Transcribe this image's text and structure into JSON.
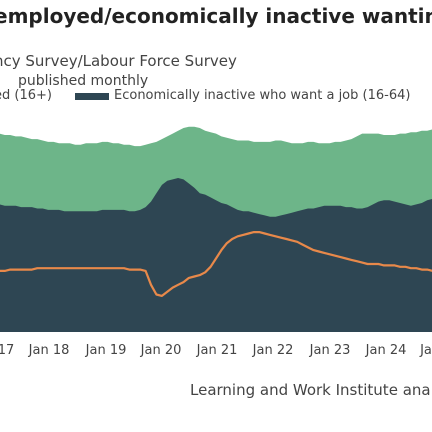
{
  "colors": {
    "economically_inactive_wanting": "#6db589",
    "unemployed": "#2e4653",
    "third_line": "#e8894a"
  },
  "chart_data": {
    "type": "area",
    "title": "employed/economically inactive wanting",
    "subtitle": "ncy Survey/Labour Force Survey",
    "note": "published monthly",
    "source": "Learning and Work Institute ana",
    "legend": [
      "ed (16+)",
      "Economically inactive who want a job (16-64)"
    ],
    "x_ticks": [
      "17",
      "Jan 18",
      "Jan 19",
      "Jan 20",
      "Jan 21",
      "Jan 22",
      "Jan 23",
      "Jan 24",
      "Ja"
    ],
    "x": [
      "2017-11",
      "2017-12",
      "2018-01",
      "2018-02",
      "2018-03",
      "2018-04",
      "2018-05",
      "2018-06",
      "2018-07",
      "2018-08",
      "2018-09",
      "2018-10",
      "2018-11",
      "2018-12",
      "2019-01",
      "2019-02",
      "2019-03",
      "2019-04",
      "2019-05",
      "2019-06",
      "2019-07",
      "2019-08",
      "2019-09",
      "2019-10",
      "2019-11",
      "2019-12",
      "2020-01",
      "2020-02",
      "2020-03",
      "2020-04",
      "2020-05",
      "2020-06",
      "2020-07",
      "2020-08",
      "2020-09",
      "2020-10",
      "2020-11",
      "2020-12",
      "2021-01",
      "2021-02",
      "2021-03",
      "2021-04",
      "2021-05",
      "2021-06",
      "2021-07",
      "2021-08",
      "2021-09",
      "2021-10",
      "2021-11",
      "2021-12",
      "2022-01",
      "2022-02",
      "2022-03",
      "2022-04",
      "2022-05",
      "2022-06",
      "2022-07",
      "2022-08",
      "2022-09",
      "2022-10",
      "2022-11",
      "2022-12",
      "2023-01",
      "2023-02",
      "2023-03",
      "2023-04",
      "2023-05",
      "2023-06",
      "2023-07",
      "2023-08",
      "2023-09",
      "2023-10",
      "2023-11",
      "2023-12",
      "2024-01",
      "2024-02",
      "2024-03",
      "2024-04",
      "2024-05",
      "2024-06",
      "2024-07",
      "2024-08",
      "2024-09"
    ],
    "series": [
      {
        "name": "ed (16+)",
        "values": [
          1.42,
          1.42,
          1.41,
          1.41,
          1.41,
          1.4,
          1.4,
          1.4,
          1.39,
          1.39,
          1.38,
          1.38,
          1.38,
          1.37,
          1.37,
          1.37,
          1.37,
          1.37,
          1.37,
          1.37,
          1.38,
          1.38,
          1.38,
          1.38,
          1.38,
          1.37,
          1.37,
          1.38,
          1.4,
          1.44,
          1.5,
          1.56,
          1.59,
          1.6,
          1.61,
          1.6,
          1.57,
          1.54,
          1.5,
          1.49,
          1.47,
          1.45,
          1.43,
          1.42,
          1.4,
          1.38,
          1.37,
          1.37,
          1.36,
          1.35,
          1.34,
          1.33,
          1.33,
          1.34,
          1.35,
          1.36,
          1.37,
          1.38,
          1.39,
          1.39,
          1.4,
          1.41,
          1.41,
          1.41,
          1.41,
          1.4,
          1.4,
          1.39,
          1.39,
          1.4,
          1.42,
          1.44,
          1.45,
          1.45,
          1.44,
          1.43,
          1.42,
          1.41,
          1.42,
          1.43,
          1.45,
          1.46,
          1.47
        ]
      },
      {
        "name": "Economically inactive who want a job (16-64)",
        "values": [
          1.95,
          1.93,
          1.92,
          1.92,
          1.91,
          1.91,
          1.9,
          1.89,
          1.89,
          1.88,
          1.87,
          1.87,
          1.86,
          1.86,
          1.86,
          1.85,
          1.85,
          1.86,
          1.86,
          1.86,
          1.87,
          1.87,
          1.86,
          1.86,
          1.85,
          1.85,
          1.84,
          1.84,
          1.85,
          1.86,
          1.87,
          1.89,
          1.91,
          1.93,
          1.95,
          1.97,
          1.98,
          1.98,
          1.97,
          1.95,
          1.94,
          1.93,
          1.91,
          1.9,
          1.89,
          1.88,
          1.88,
          1.88,
          1.87,
          1.87,
          1.87,
          1.87,
          1.88,
          1.88,
          1.87,
          1.86,
          1.86,
          1.86,
          1.87,
          1.87,
          1.86,
          1.86,
          1.86,
          1.87,
          1.87,
          1.88,
          1.89,
          1.91,
          1.93,
          1.93,
          1.93,
          1.93,
          1.92,
          1.92,
          1.92,
          1.93,
          1.93,
          1.94,
          1.94,
          1.95,
          1.95,
          1.96,
          1.96
        ]
      },
      {
        "name": "",
        "values": [
          0.94,
          0.94,
          0.94,
          0.95,
          0.95,
          0.95,
          0.95,
          0.95,
          0.96,
          0.96,
          0.96,
          0.96,
          0.96,
          0.96,
          0.96,
          0.96,
          0.96,
          0.96,
          0.96,
          0.96,
          0.96,
          0.96,
          0.96,
          0.96,
          0.96,
          0.95,
          0.95,
          0.95,
          0.94,
          0.84,
          0.77,
          0.76,
          0.79,
          0.82,
          0.84,
          0.86,
          0.89,
          0.9,
          0.91,
          0.93,
          0.97,
          1.03,
          1.09,
          1.14,
          1.17,
          1.19,
          1.2,
          1.21,
          1.22,
          1.22,
          1.21,
          1.2,
          1.19,
          1.18,
          1.17,
          1.16,
          1.15,
          1.13,
          1.11,
          1.09,
          1.08,
          1.07,
          1.06,
          1.05,
          1.04,
          1.03,
          1.02,
          1.01,
          1.0,
          0.99,
          0.99,
          0.99,
          0.98,
          0.98,
          0.98,
          0.97,
          0.97,
          0.96,
          0.96,
          0.95,
          0.95,
          0.94,
          0.94
        ]
      }
    ],
    "ylim": [
      0.5,
      2.1
    ],
    "grid": false,
    "legend_position": "top"
  }
}
